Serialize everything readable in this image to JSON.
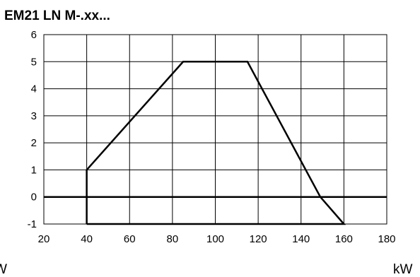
{
  "chart_data": {
    "type": "line",
    "title": "EM21 LN M-.xx...",
    "xlabel": "kW",
    "left_edge_label": "W",
    "ylabel": "",
    "xlim": [
      20,
      180
    ],
    "ylim": [
      -1,
      6
    ],
    "xticks": [
      20,
      40,
      60,
      80,
      100,
      120,
      140,
      160,
      180
    ],
    "yticks": [
      -1,
      0,
      1,
      2,
      3,
      4,
      5,
      6
    ],
    "grid": true,
    "series": [
      {
        "values": [
          {
            "x": 40,
            "y": -1
          },
          {
            "x": 40,
            "y": 1
          },
          {
            "x": 85,
            "y": 5
          },
          {
            "x": 115,
            "y": 5
          },
          {
            "x": 149,
            "y": 0
          },
          {
            "x": 160,
            "y": -1
          },
          {
            "x": 40,
            "y": -1
          }
        ]
      }
    ],
    "reference_lines": [
      {
        "axis": "y",
        "value": 0
      }
    ]
  }
}
